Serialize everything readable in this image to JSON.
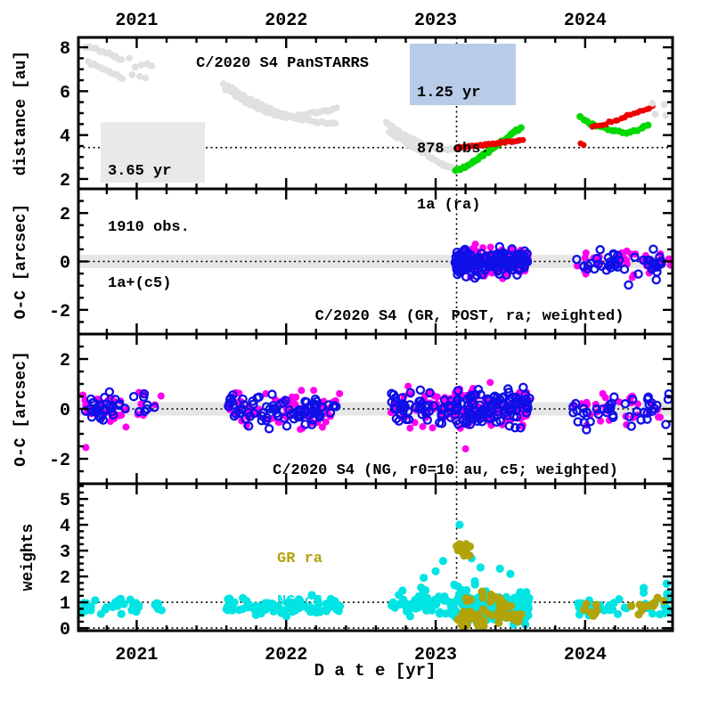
{
  "figure": {
    "object": "C/2020 S4 PanSTARRS",
    "xaxis_title": "D a t e [yr]"
  },
  "annotations": {
    "left_box": {
      "lines": [
        "3.65 yr",
        "1910 obs.",
        "1a+(c5)"
      ],
      "bg": "#e9e9e9"
    },
    "right_box": {
      "lines": [
        "1.25 yr",
        "878 obs.",
        "1a (ra)"
      ],
      "bg": "#b8cbe7"
    },
    "panel2_label": "C/2020 S4 (GR, POST, ra; weighted)",
    "panel3_label": "C/2020 S4 (NG, r0=10 au, c5; weighted)"
  },
  "legend": {
    "gr": "GR ra",
    "ng": "NG c5"
  },
  "colors": {
    "magenta": "#ff00ee",
    "blue": "#0f0fe8",
    "cyan": "#00e4e4",
    "olive": "#b2a30b",
    "red": "#ed0000",
    "green": "#00d800",
    "gray": "#e0e0e0",
    "band": "#e6e6e6",
    "box_blue": "#b8cbe7",
    "box_gray": "#e9e9e9"
  },
  "chart_data": {
    "type": "scatter",
    "x_axis": {
      "label": "D a t e [yr]",
      "ticks": [
        2021,
        2022,
        2023,
        2024
      ],
      "range": [
        2020.61,
        2024.585
      ],
      "minor_step": 0.2
    },
    "vline_year": 2023.14,
    "panels": [
      {
        "name": "distance",
        "ylabel": "distance [au]",
        "ylim": [
          1.55,
          8.45
        ],
        "yticks": [
          2,
          4,
          6,
          8
        ],
        "minor_step": 0.5,
        "hlines": [
          3.43
        ],
        "tracks": [
          {
            "style": "gray",
            "n": 14,
            "jitter": 0.06,
            "pts": [
              [
                2020.665,
                8.05
              ],
              [
                2020.78,
                7.8
              ],
              [
                2020.9,
                7.45
              ]
            ]
          },
          {
            "style": "gray",
            "n": 14,
            "jitter": 0.06,
            "pts": [
              [
                2020.675,
                7.3
              ],
              [
                2020.79,
                7.0
              ],
              [
                2020.9,
                6.62
              ]
            ]
          },
          {
            "style": "gray",
            "n": 42,
            "jitter": 0.05,
            "pts": [
              [
                2021.58,
                6.35
              ],
              [
                2021.7,
                5.85
              ],
              [
                2021.82,
                5.4
              ],
              [
                2021.95,
                5.0
              ],
              [
                2022.08,
                4.75
              ],
              [
                2022.2,
                4.6
              ],
              [
                2022.33,
                4.5
              ]
            ]
          },
          {
            "style": "gray",
            "n": 42,
            "jitter": 0.05,
            "pts": [
              [
                2021.6,
                6.1
              ],
              [
                2021.72,
                5.55
              ],
              [
                2021.85,
                5.1
              ],
              [
                2021.98,
                4.8
              ],
              [
                2022.1,
                4.9
              ],
              [
                2022.22,
                5.05
              ],
              [
                2022.33,
                5.2
              ]
            ]
          },
          {
            "style": "gray",
            "n": 30,
            "jitter": 0.05,
            "pts": [
              [
                2022.67,
                4.55
              ],
              [
                2022.78,
                4.05
              ],
              [
                2022.9,
                3.65
              ],
              [
                2023.0,
                3.42
              ],
              [
                2023.1,
                3.35
              ],
              [
                2023.18,
                3.35
              ]
            ]
          },
          {
            "style": "gray",
            "n": 30,
            "jitter": 0.05,
            "pts": [
              [
                2022.69,
                4.1
              ],
              [
                2022.79,
                3.7
              ],
              [
                2022.9,
                3.3
              ],
              [
                2023.0,
                2.85
              ],
              [
                2023.08,
                2.55
              ],
              [
                2023.16,
                2.42
              ]
            ]
          },
          {
            "style": "green",
            "n": 36,
            "jitter": 0.04,
            "pts": [
              [
                2023.13,
                2.35
              ],
              [
                2023.2,
                2.55
              ],
              [
                2023.28,
                2.9
              ],
              [
                2023.36,
                3.3
              ],
              [
                2023.45,
                3.75
              ],
              [
                2023.52,
                4.1
              ],
              [
                2023.57,
                4.3
              ]
            ]
          },
          {
            "style": "green",
            "n": 20,
            "jitter": 0.05,
            "pts": [
              [
                2023.97,
                4.85
              ],
              [
                2024.0,
                4.65
              ],
              [
                2024.05,
                4.5
              ],
              [
                2024.12,
                4.35
              ],
              [
                2024.2,
                4.2
              ],
              [
                2024.28,
                4.12
              ],
              [
                2024.35,
                4.22
              ],
              [
                2024.42,
                4.45
              ]
            ]
          },
          {
            "style": "red",
            "n": 42,
            "jitter": 0.04,
            "pts": [
              [
                2023.14,
                3.42
              ],
              [
                2023.25,
                3.5
              ],
              [
                2023.35,
                3.58
              ],
              [
                2023.45,
                3.66
              ],
              [
                2023.58,
                3.78
              ]
            ]
          },
          {
            "style": "red",
            "n": 20,
            "jitter": 0.05,
            "pts": [
              [
                2024.05,
                4.4
              ],
              [
                2024.12,
                4.5
              ],
              [
                2024.2,
                4.65
              ],
              [
                2024.3,
                4.95
              ],
              [
                2024.38,
                5.15
              ],
              [
                2024.45,
                5.3
              ]
            ]
          }
        ],
        "dots": [
          {
            "style": "gray",
            "pts": [
              [
                2020.95,
                7.5
              ],
              [
                2020.99,
                7.1
              ],
              [
                2021.03,
                7.2
              ],
              [
                2021.07,
                7.25
              ],
              [
                2021.1,
                7.15
              ],
              [
                2020.97,
                6.75
              ],
              [
                2021.02,
                6.68
              ],
              [
                2021.06,
                6.6
              ],
              [
                2024.45,
                5.45
              ],
              [
                2024.47,
                4.95
              ],
              [
                2024.53,
                5.4
              ],
              [
                2024.54,
                4.9
              ]
            ]
          },
          {
            "style": "red",
            "pts": [
              [
                2023.97,
                3.62
              ],
              [
                2023.99,
                3.55
              ]
            ]
          }
        ],
        "clusters": []
      },
      {
        "name": "oc_gr",
        "ylabel": "O-C [arcsec]",
        "ylim": [
          -3,
          3
        ],
        "yticks": [
          -2,
          0,
          2
        ],
        "minor_step": 0.5,
        "band": [
          -0.27,
          0.27
        ],
        "hlines": [
          0
        ],
        "clusters": [
          {
            "style": "magenta",
            "x0": 2023.13,
            "x1": 2023.62,
            "n": 130,
            "mean": -0.02,
            "sd": 0.3,
            "clamp": [
              -1.05,
              0.95
            ]
          },
          {
            "style": "blueOpen",
            "x0": 2023.13,
            "x1": 2023.62,
            "n": 150,
            "mean": 0.0,
            "sd": 0.24,
            "clamp": [
              -0.85,
              0.85
            ]
          },
          {
            "style": "magenta",
            "x0": 2023.93,
            "x1": 2024.52,
            "n": 35,
            "mean": 0.0,
            "sd": 0.3,
            "clamp": [
              -0.8,
              0.95
            ]
          },
          {
            "style": "blueOpen",
            "x0": 2023.93,
            "x1": 2024.52,
            "n": 45,
            "mean": -0.05,
            "sd": 0.3,
            "clamp": [
              -1.2,
              0.8
            ]
          }
        ],
        "dots": [
          {
            "style": "magenta",
            "pts": [
              [
                2024.56,
                0.1
              ],
              [
                2024.57,
                -0.15
              ]
            ]
          }
        ]
      },
      {
        "name": "oc_ng",
        "ylabel": "O-C [arcsec]",
        "ylim": [
          -3,
          3
        ],
        "yticks": [
          -2,
          0,
          2
        ],
        "minor_step": 0.5,
        "band": [
          -0.27,
          0.27
        ],
        "hlines": [
          0
        ],
        "clusters": [
          {
            "style": "magenta",
            "x0": 2020.64,
            "x1": 2020.93,
            "n": 28,
            "mean": -0.05,
            "sd": 0.35,
            "clamp": [
              -1.0,
              0.9
            ]
          },
          {
            "style": "blueOpen",
            "x0": 2020.64,
            "x1": 2020.93,
            "n": 32,
            "mean": 0.05,
            "sd": 0.3,
            "clamp": [
              -0.8,
              0.95
            ]
          },
          {
            "style": "magenta",
            "x0": 2020.96,
            "x1": 2021.18,
            "n": 7,
            "mean": 0.0,
            "sd": 0.3,
            "clamp": [
              -0.7,
              0.7
            ]
          },
          {
            "style": "blueOpen",
            "x0": 2020.96,
            "x1": 2021.18,
            "n": 8,
            "mean": 0.1,
            "sd": 0.3,
            "clamp": [
              -0.6,
              0.9
            ]
          },
          {
            "style": "magenta",
            "x0": 2021.6,
            "x1": 2022.36,
            "n": 65,
            "mean": 0.0,
            "sd": 0.38,
            "clamp": [
              -1.3,
              1.1
            ]
          },
          {
            "style": "blueOpen",
            "x0": 2021.6,
            "x1": 2022.36,
            "n": 85,
            "mean": 0.0,
            "sd": 0.3,
            "clamp": [
              -1.0,
              1.0
            ]
          },
          {
            "style": "magenta",
            "x0": 2022.7,
            "x1": 2023.12,
            "n": 45,
            "mean": 0.0,
            "sd": 0.38,
            "clamp": [
              -1.2,
              1.1
            ]
          },
          {
            "style": "blueOpen",
            "x0": 2022.7,
            "x1": 2023.12,
            "n": 55,
            "mean": 0.0,
            "sd": 0.32,
            "clamp": [
              -1.0,
              1.0
            ]
          },
          {
            "style": "magenta",
            "x0": 2023.12,
            "x1": 2023.63,
            "n": 85,
            "mean": 0.0,
            "sd": 0.4,
            "clamp": [
              -1.5,
              1.3
            ]
          },
          {
            "style": "blueOpen",
            "x0": 2023.12,
            "x1": 2023.63,
            "n": 105,
            "mean": 0.0,
            "sd": 0.33,
            "clamp": [
              -1.3,
              1.2
            ]
          },
          {
            "style": "magenta",
            "x0": 2023.92,
            "x1": 2024.56,
            "n": 30,
            "mean": 0.0,
            "sd": 0.38,
            "clamp": [
              -1.2,
              1.2
            ]
          },
          {
            "style": "blueOpen",
            "x0": 2023.92,
            "x1": 2024.56,
            "n": 40,
            "mean": -0.05,
            "sd": 0.35,
            "clamp": [
              -1.5,
              1.0
            ]
          }
        ],
        "dots": [
          {
            "style": "magenta",
            "pts": [
              [
                2020.66,
                -1.55
              ],
              [
                2023.2,
                -1.6
              ]
            ]
          },
          {
            "style": "blueOpen",
            "pts": [
              [
                2024.56,
                0.6
              ]
            ]
          }
        ]
      },
      {
        "name": "weights",
        "ylabel": "weights",
        "ylim": [
          -0.1,
          5.59
        ],
        "yticks": [
          0,
          1,
          2,
          3,
          4,
          5
        ],
        "minor_step": 0.25,
        "hlines": [
          1,
          0
        ],
        "legend_pos": {
          "x": 2021.93,
          "gr_y": 3.55,
          "ng_y": 3.0
        },
        "clusters": [
          {
            "style": "cyan",
            "x0": 2020.63,
            "x1": 2021.02,
            "n": 32,
            "mean": 0.78,
            "sd": 0.17,
            "clamp": [
              0.38,
              1.15
            ]
          },
          {
            "style": "cyan",
            "x0": 2021.05,
            "x1": 2021.17,
            "n": 5,
            "mean": 0.8,
            "sd": 0.15,
            "clamp": [
              0.5,
              1.1
            ]
          },
          {
            "style": "cyan",
            "x0": 2021.6,
            "x1": 2022.36,
            "n": 75,
            "mean": 0.85,
            "sd": 0.18,
            "clamp": [
              0.45,
              1.35
            ]
          },
          {
            "style": "cyan",
            "x0": 2022.7,
            "x1": 2023.12,
            "n": 55,
            "mean": 0.95,
            "sd": 0.28,
            "clamp": [
              0.4,
              1.9
            ]
          },
          {
            "style": "cyan",
            "x0": 2023.12,
            "x1": 2023.63,
            "n": 160,
            "mean": 0.85,
            "sd": 0.42,
            "clamp": [
              0.08,
              2.0
            ]
          },
          {
            "style": "cyan",
            "x0": 2023.95,
            "x1": 2024.28,
            "n": 22,
            "mean": 0.8,
            "sd": 0.2,
            "clamp": [
              0.4,
              1.3
            ]
          },
          {
            "style": "cyan",
            "x0": 2024.3,
            "x1": 2024.56,
            "n": 16,
            "mean": 1.0,
            "sd": 0.35,
            "clamp": [
              0.35,
              1.75
            ]
          },
          {
            "style": "olive",
            "x0": 2023.14,
            "x1": 2023.23,
            "n": 13,
            "mean": 3.05,
            "sd": 0.17,
            "clamp": [
              2.75,
              3.45
            ]
          },
          {
            "style": "olive",
            "x0": 2023.13,
            "x1": 2023.33,
            "n": 28,
            "mean": 0.3,
            "sd": 0.2,
            "clamp": [
              0.05,
              0.85
            ]
          },
          {
            "style": "olive",
            "x0": 2023.3,
            "x1": 2023.6,
            "n": 28,
            "mean": 0.5,
            "sd": 0.28,
            "clamp": [
              0.07,
              1.2
            ]
          },
          {
            "style": "olive",
            "x0": 2023.2,
            "x1": 2023.5,
            "n": 10,
            "mean": 1.15,
            "sd": 0.15,
            "clamp": [
              0.8,
              1.5
            ]
          },
          {
            "style": "olive",
            "x0": 2023.98,
            "x1": 2024.12,
            "n": 7,
            "mean": 0.72,
            "sd": 0.15,
            "clamp": [
              0.45,
              1.0
            ]
          },
          {
            "style": "olive",
            "x0": 2024.3,
            "x1": 2024.53,
            "n": 12,
            "mean": 0.8,
            "sd": 0.22,
            "clamp": [
              0.35,
              1.2
            ]
          }
        ],
        "dots": [
          {
            "style": "cyan",
            "pts": [
              [
                2022.92,
                1.95
              ],
              [
                2023.0,
                2.2
              ],
              [
                2023.05,
                2.6
              ],
              [
                2023.16,
                4.0
              ],
              [
                2023.19,
                3.0
              ],
              [
                2023.24,
                2.7
              ],
              [
                2023.3,
                2.35
              ],
              [
                2023.43,
                2.3
              ],
              [
                2023.5,
                2.1
              ]
            ]
          }
        ]
      }
    ]
  }
}
